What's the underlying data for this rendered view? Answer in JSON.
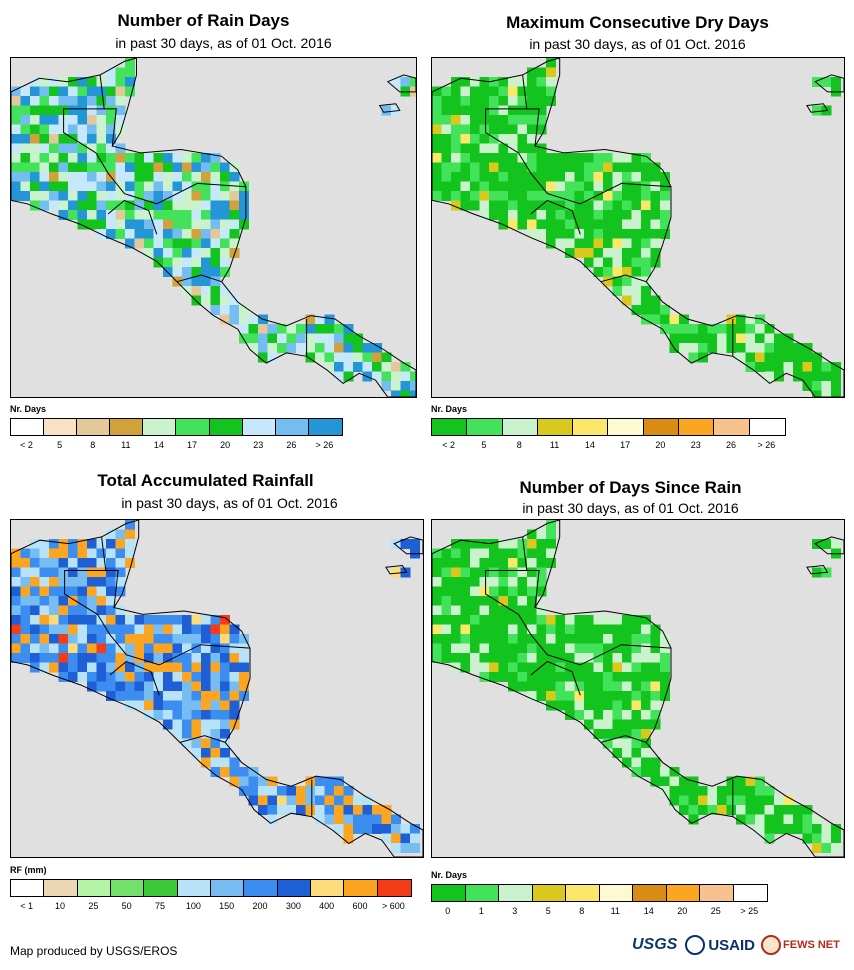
{
  "panels": [
    {
      "id": "rain-days",
      "title": "Number of Rain Days",
      "subtitle": "in past 30 days, as of 01 Oct. 2016",
      "legend_title": "Nr. Days",
      "colors": [
        "#ffffff",
        "#f8e2c6",
        "#e3c99a",
        "#d1a23c",
        "#c9f2cd",
        "#42e35a",
        "#14c41e",
        "#c7e8fb",
        "#73bdf0",
        "#2496d8"
      ],
      "labels": [
        "< 2",
        "5",
        "8",
        "11",
        "14",
        "17",
        "20",
        "23",
        "26",
        "> 26"
      ],
      "land_palette": [
        "#14c41e",
        "#42e35a",
        "#c7e8fb",
        "#73bdf0",
        "#c9f2cd",
        "#2496d8"
      ],
      "accent_colors": [
        "#d1a23c",
        "#e3c99a"
      ]
    },
    {
      "id": "max-dry-days",
      "title": "Maximum Consecutive Dry Days",
      "subtitle": "in past 30 days, as of 01 Oct. 2016",
      "legend_title": "Nr. Days",
      "colors": [
        "#14c41e",
        "#42e35a",
        "#c9f2cd",
        "#d9c81e",
        "#fbe86a",
        "#fdf9d0",
        "#d98c14",
        "#fba520",
        "#f8c28e",
        "#ffffff"
      ],
      "labels": [
        "< 2",
        "5",
        "8",
        "11",
        "14",
        "17",
        "20",
        "23",
        "26",
        "> 26"
      ],
      "land_palette": [
        "#14c41e",
        "#14c41e",
        "#42e35a",
        "#c9f2cd",
        "#14c41e"
      ],
      "accent_colors": [
        "#d9c81e",
        "#fbe86a"
      ]
    },
    {
      "id": "total-rainfall",
      "title": "Total Accumulated Rainfall",
      "subtitle": "in past 30 days, as of 01 Oct. 2016",
      "legend_title": "RF (mm)",
      "colors": [
        "#ffffff",
        "#ecd7b4",
        "#b3f5a4",
        "#72e06a",
        "#3bc93a",
        "#b7e2f7",
        "#77bdf2",
        "#3b8ef0",
        "#1e5fd6",
        "#fedb7a",
        "#fba520",
        "#f43c16"
      ],
      "labels": [
        "< 1",
        "10",
        "25",
        "50",
        "75",
        "100",
        "150",
        "200",
        "300",
        "400",
        "600",
        "> 600"
      ],
      "land_palette": [
        "#3b8ef0",
        "#1e5fd6",
        "#77bdf2",
        "#b7e2f7",
        "#3b8ef0",
        "#fba520"
      ],
      "accent_colors": [
        "#fba520",
        "#fedb7a",
        "#f43c16"
      ]
    },
    {
      "id": "days-since-rain",
      "title": "Number of Days Since Rain",
      "subtitle": "in past 30 days, as of 01 Oct. 2016",
      "legend_title": "Nr. Days",
      "colors": [
        "#14c41e",
        "#42e35a",
        "#c9f2cd",
        "#d9c81e",
        "#fbe86a",
        "#fdf9d0",
        "#d98c14",
        "#fba520",
        "#f8c28e",
        "#ffffff"
      ],
      "labels": [
        "0",
        "1",
        "3",
        "5",
        "8",
        "11",
        "14",
        "20",
        "25",
        "> 25"
      ],
      "land_palette": [
        "#14c41e",
        "#14c41e",
        "#14c41e",
        "#42e35a",
        "#c9f2cd"
      ],
      "accent_colors": [
        "#d9c81e",
        "#fbe86a"
      ]
    }
  ],
  "credit": "Map produced by USGS/EROS",
  "logos": {
    "usgs": "USGS",
    "usaid": "USAID",
    "fews": "FEWS NET"
  }
}
